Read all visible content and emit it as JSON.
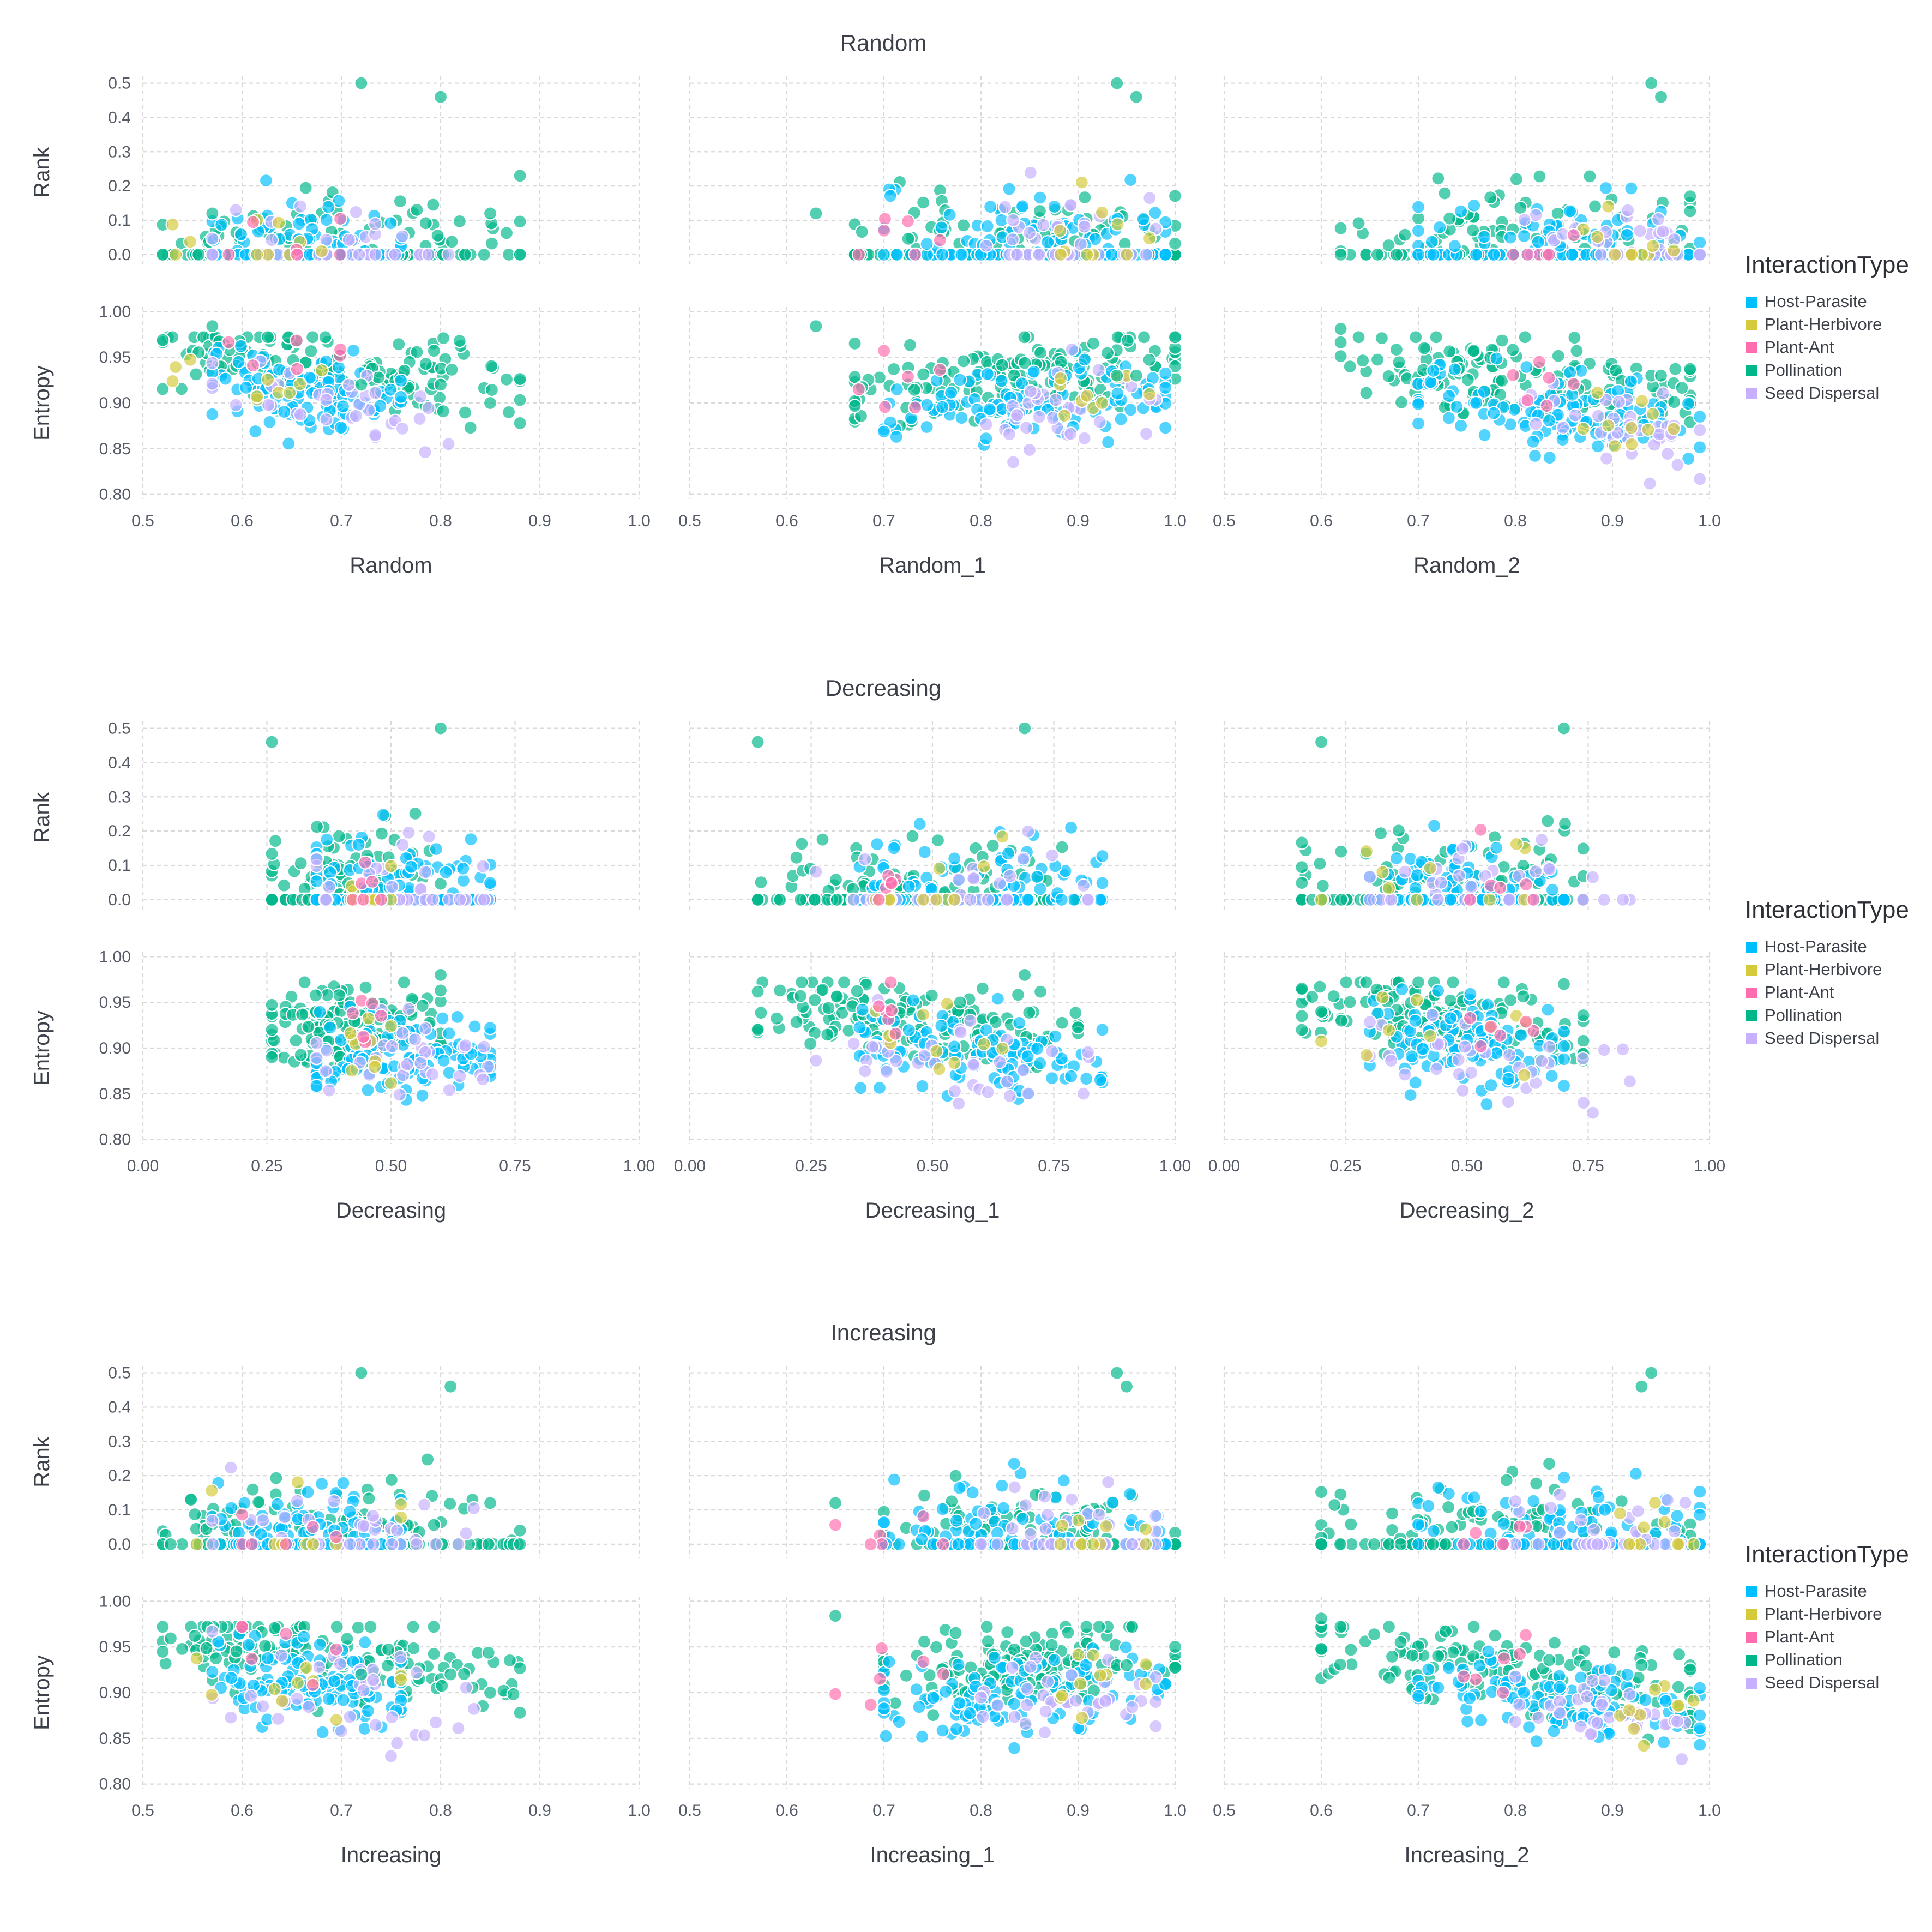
{
  "legend": {
    "title": "InteractionType",
    "entries": [
      {
        "label": "Host-Parasite",
        "color": "#00BFFF"
      },
      {
        "label": "Plant-Herbivore",
        "color": "#D4CA3A"
      },
      {
        "label": "Plant-Ant",
        "color": "#FF6DAE"
      },
      {
        "label": "Pollination",
        "color": "#00B78A"
      },
      {
        "label": "Seed Dispersal",
        "color": "#C6B0FF"
      }
    ]
  },
  "chart_data": [
    {
      "type": "scatter",
      "title": "Random",
      "panel_ylabels": [
        "Rank",
        "Entropy"
      ],
      "rank_axis": {
        "ylim": [
          -0.04,
          0.52
        ],
        "ticks": [
          "0.0",
          "0.1",
          "0.2",
          "0.3",
          "0.4",
          "0.5"
        ]
      },
      "entropy_axis": {
        "ylim": [
          0.795,
          1.005
        ],
        "ticks": [
          "0.80",
          "0.85",
          "0.90",
          "0.95",
          "1.00"
        ]
      },
      "columns": [
        {
          "xlabel": "Random",
          "xlim": [
            0.5,
            1.0
          ],
          "xticks": [
            "0.5",
            "0.6",
            "0.7",
            "0.8",
            "0.9",
            "1.0"
          ],
          "x_summary": {
            "Host-Parasite": [
              0.57,
              0.76
            ],
            "Plant-Herbivore": [
              0.53,
              0.76
            ],
            "Plant-Ant": [
              0.57,
              0.71
            ],
            "Pollination": [
              0.52,
              0.88
            ],
            "Seed Dispersal": [
              0.57,
              0.85
            ]
          },
          "highlights": [
            {
              "x": 0.72,
              "rank": 0.5,
              "entropy": 0.92
            },
            {
              "x": 0.8,
              "rank": 0.46,
              "entropy": 0.92
            },
            {
              "x": 0.85,
              "rank": 0.12,
              "entropy": 0.9
            },
            {
              "x": 0.88,
              "rank": 0.0,
              "entropy": 0.878
            },
            {
              "x": 0.57,
              "rank": 0.12,
              "entropy": 0.984
            }
          ]
        },
        {
          "xlabel": "Random_1",
          "xlim": [
            0.5,
            1.0
          ],
          "xticks": [
            "0.5",
            "0.6",
            "0.7",
            "0.8",
            "0.9",
            "1.0"
          ],
          "x_summary": {
            "Host-Parasite": [
              0.7,
              0.99
            ],
            "Plant-Herbivore": [
              0.86,
              0.99
            ],
            "Plant-Ant": [
              0.63,
              0.81
            ],
            "Pollination": [
              0.67,
              1.0
            ],
            "Seed Dispersal": [
              0.8,
              0.98
            ]
          },
          "highlights": [
            {
              "x": 0.94,
              "rank": 0.5,
              "entropy": 0.93
            },
            {
              "x": 0.96,
              "rank": 0.46,
              "entropy": 0.93
            },
            {
              "x": 0.63,
              "rank": 0.12,
              "entropy": 0.984
            }
          ]
        },
        {
          "xlabel": "Random_2",
          "xlim": [
            0.5,
            1.0
          ],
          "xticks": [
            "0.5",
            "0.6",
            "0.7",
            "0.8",
            "0.9",
            "1.0"
          ],
          "x_summary": {
            "Host-Parasite": [
              0.7,
              0.99
            ],
            "Plant-Herbivore": [
              0.87,
              0.99
            ],
            "Plant-Ant": [
              0.78,
              0.86
            ],
            "Pollination": [
              0.62,
              0.98
            ],
            "Seed Dispersal": [
              0.8,
              0.99
            ]
          },
          "highlights": [
            {
              "x": 0.94,
              "rank": 0.5,
              "entropy": 0.93
            },
            {
              "x": 0.95,
              "rank": 0.46,
              "entropy": 0.93
            },
            {
              "x": 0.62,
              "rank": 0.0,
              "entropy": 0.981
            }
          ]
        }
      ]
    },
    {
      "type": "scatter",
      "title": "Decreasing",
      "panel_ylabels": [
        "Rank",
        "Entropy"
      ],
      "rank_axis": {
        "ylim": [
          -0.04,
          0.52
        ],
        "ticks": [
          "0.0",
          "0.1",
          "0.2",
          "0.3",
          "0.4",
          "0.5"
        ]
      },
      "entropy_axis": {
        "ylim": [
          0.795,
          1.005
        ],
        "ticks": [
          "0.80",
          "0.85",
          "0.90",
          "0.95",
          "1.00"
        ]
      },
      "columns": [
        {
          "xlabel": "Decreasing",
          "xlim": [
            0.0,
            1.0
          ],
          "xticks": [
            "0.00",
            "0.25",
            "0.50",
            "0.75",
            "1.00"
          ],
          "x_summary": {
            "Host-Parasite": [
              0.35,
              0.7
            ],
            "Plant-Herbivore": [
              0.39,
              0.5
            ],
            "Plant-Ant": [
              0.42,
              0.48
            ],
            "Pollination": [
              0.26,
              0.6
            ],
            "Seed Dispersal": [
              0.35,
              0.7
            ]
          },
          "highlights": [
            {
              "x": 0.6,
              "rank": 0.5,
              "entropy": 0.98
            },
            {
              "x": 0.26,
              "rank": 0.46,
              "entropy": 0.92
            }
          ]
        },
        {
          "xlabel": "Decreasing_1",
          "xlim": [
            0.0,
            1.0
          ],
          "xticks": [
            "0.00",
            "0.25",
            "0.50",
            "0.75",
            "1.00"
          ],
          "x_summary": {
            "Host-Parasite": [
              0.35,
              0.85
            ],
            "Plant-Herbivore": [
              0.35,
              0.65
            ],
            "Plant-Ant": [
              0.38,
              0.46
            ],
            "Pollination": [
              0.14,
              0.8
            ],
            "Seed Dispersal": [
              0.26,
              0.9
            ]
          },
          "highlights": [
            {
              "x": 0.69,
              "rank": 0.5,
              "entropy": 0.98
            },
            {
              "x": 0.14,
              "rank": 0.46,
              "entropy": 0.92
            }
          ]
        },
        {
          "xlabel": "Decreasing_2",
          "xlim": [
            0.0,
            1.0
          ],
          "xticks": [
            "0.00",
            "0.25",
            "0.50",
            "0.75",
            "1.00"
          ],
          "x_summary": {
            "Host-Parasite": [
              0.3,
              0.7
            ],
            "Plant-Herbivore": [
              0.2,
              0.62
            ],
            "Plant-Ant": [
              0.48,
              0.66
            ],
            "Pollination": [
              0.16,
              0.74
            ],
            "Seed Dispersal": [
              0.3,
              0.84
            ]
          },
          "highlights": [
            {
              "x": 0.7,
              "rank": 0.5,
              "entropy": 0.97
            },
            {
              "x": 0.2,
              "rank": 0.46,
              "entropy": 0.94
            }
          ]
        }
      ]
    },
    {
      "type": "scatter",
      "title": "Increasing",
      "panel_ylabels": [
        "Rank",
        "Entropy"
      ],
      "rank_axis": {
        "ylim": [
          -0.04,
          0.52
        ],
        "ticks": [
          "0.0",
          "0.1",
          "0.2",
          "0.3",
          "0.4",
          "0.5"
        ]
      },
      "entropy_axis": {
        "ylim": [
          0.795,
          1.005
        ],
        "ticks": [
          "0.80",
          "0.85",
          "0.90",
          "0.95",
          "1.00"
        ]
      },
      "columns": [
        {
          "xlabel": "Increasing",
          "xlim": [
            0.5,
            1.0
          ],
          "xticks": [
            "0.5",
            "0.6",
            "0.7",
            "0.8",
            "0.9",
            "1.0"
          ],
          "x_summary": {
            "Host-Parasite": [
              0.57,
              0.76
            ],
            "Plant-Herbivore": [
              0.53,
              0.76
            ],
            "Plant-Ant": [
              0.6,
              0.71
            ],
            "Pollination": [
              0.52,
              0.88
            ],
            "Seed Dispersal": [
              0.57,
              0.85
            ]
          },
          "highlights": [
            {
              "x": 0.72,
              "rank": 0.5,
              "entropy": 0.92
            },
            {
              "x": 0.81,
              "rank": 0.46,
              "entropy": 0.92
            },
            {
              "x": 0.85,
              "rank": 0.12,
              "entropy": 0.9
            },
            {
              "x": 0.88,
              "rank": 0.0,
              "entropy": 0.878
            }
          ]
        },
        {
          "xlabel": "Increasing_1",
          "xlim": [
            0.5,
            1.0
          ],
          "xticks": [
            "0.5",
            "0.6",
            "0.7",
            "0.8",
            "0.9",
            "1.0"
          ],
          "x_summary": {
            "Host-Parasite": [
              0.7,
              0.99
            ],
            "Plant-Herbivore": [
              0.86,
              0.99
            ],
            "Plant-Ant": [
              0.65,
              0.8
            ],
            "Pollination": [
              0.7,
              1.0
            ],
            "Seed Dispersal": [
              0.8,
              0.98
            ]
          },
          "highlights": [
            {
              "x": 0.94,
              "rank": 0.5,
              "entropy": 0.93
            },
            {
              "x": 0.95,
              "rank": 0.46,
              "entropy": 0.93
            },
            {
              "x": 0.65,
              "rank": 0.12,
              "entropy": 0.984
            }
          ]
        },
        {
          "xlabel": "Increasing_2",
          "xlim": [
            0.5,
            1.0
          ],
          "xticks": [
            "0.5",
            "0.6",
            "0.7",
            "0.8",
            "0.9",
            "1.0"
          ],
          "x_summary": {
            "Host-Parasite": [
              0.7,
              0.99
            ],
            "Plant-Herbivore": [
              0.87,
              0.99
            ],
            "Plant-Ant": [
              0.7,
              0.86
            ],
            "Pollination": [
              0.6,
              0.98
            ],
            "Seed Dispersal": [
              0.8,
              0.99
            ]
          },
          "highlights": [
            {
              "x": 0.94,
              "rank": 0.5,
              "entropy": 0.93
            },
            {
              "x": 0.93,
              "rank": 0.46,
              "entropy": 0.93
            },
            {
              "x": 0.6,
              "rank": 0.0,
              "entropy": 0.981
            }
          ]
        }
      ]
    }
  ]
}
